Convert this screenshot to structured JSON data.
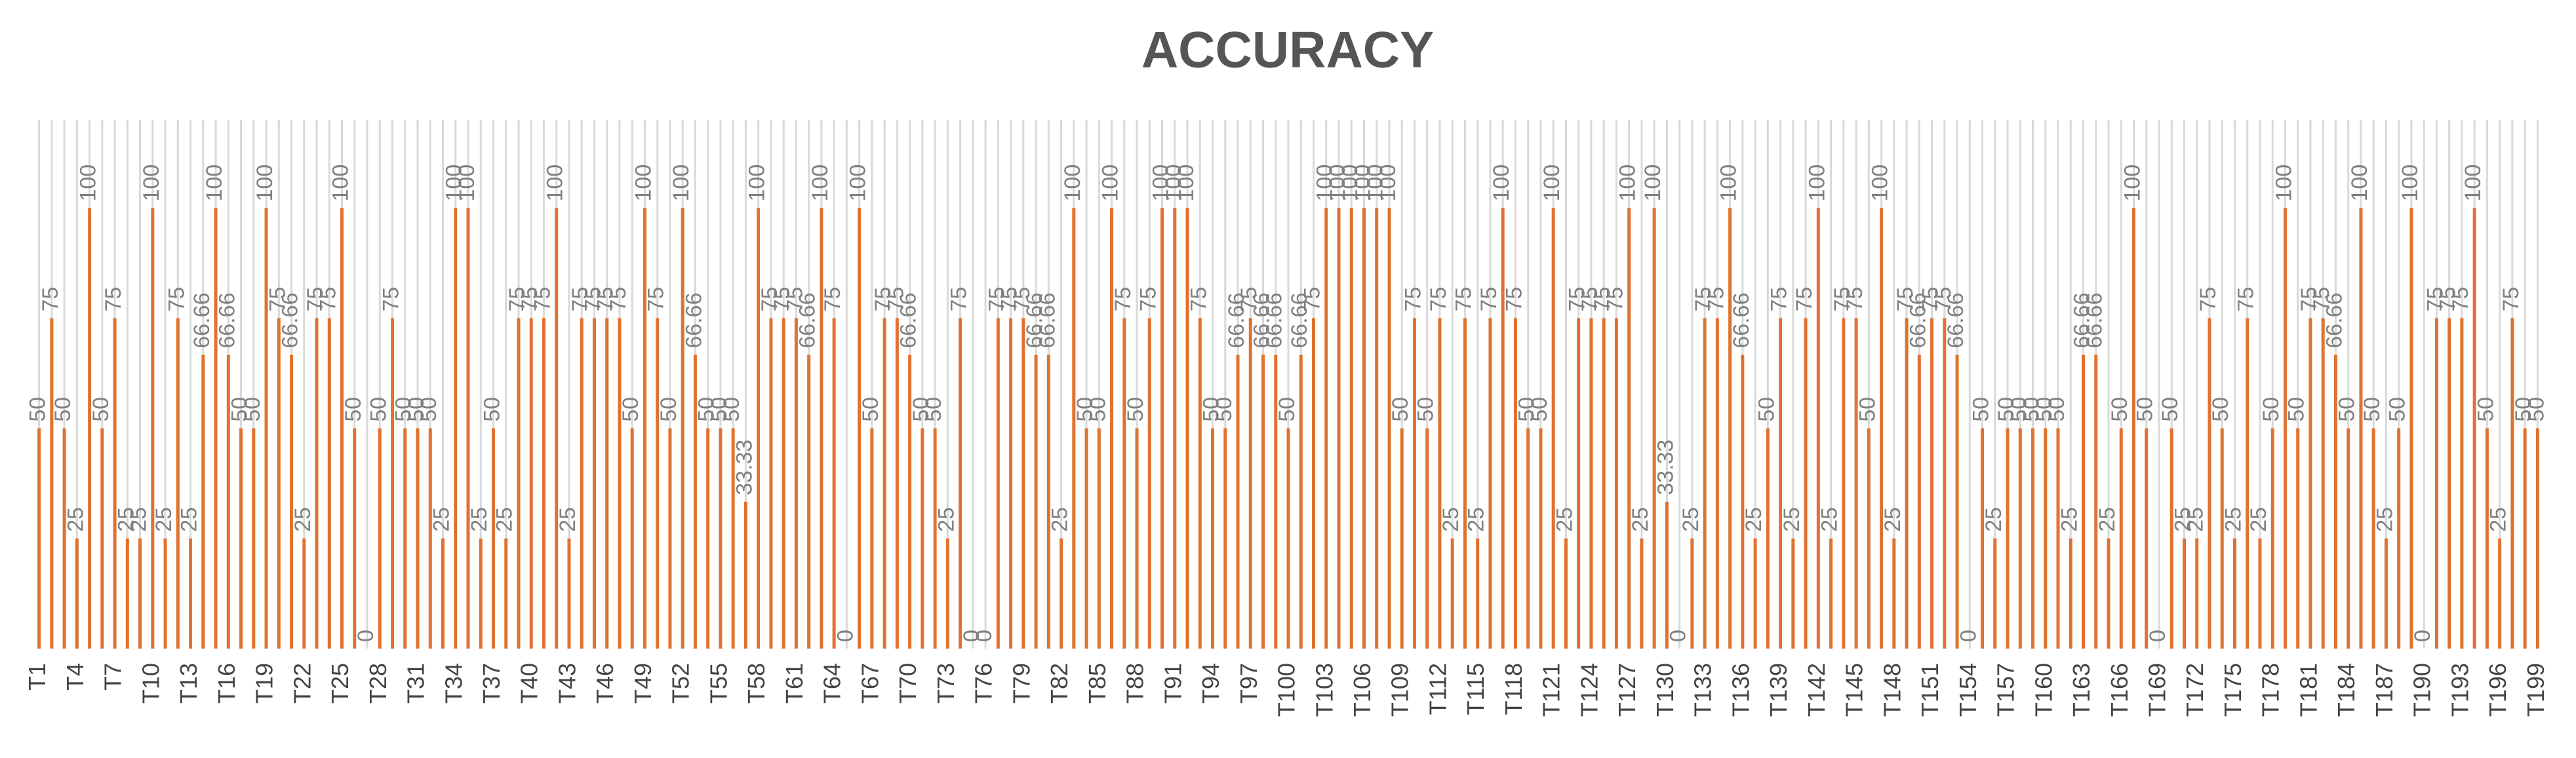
{
  "chart_data": {
    "type": "bar",
    "title": "ACCURACY",
    "categories": [
      "T1",
      null,
      null,
      "T4",
      null,
      null,
      "T7",
      null,
      null,
      "T10",
      null,
      null,
      "T13",
      null,
      null,
      "T16",
      null,
      null,
      "T19",
      null,
      null,
      "T22",
      null,
      null,
      "T25",
      null,
      null,
      "T28",
      null,
      null,
      "T31",
      null,
      null,
      "T34",
      null,
      null,
      "T37",
      null,
      null,
      "T40",
      null,
      null,
      "T43",
      null,
      null,
      "T46",
      null,
      null,
      "T49",
      null,
      null,
      "T52",
      null,
      null,
      "T55",
      null,
      null,
      "T58",
      null,
      null,
      "T61",
      null,
      null,
      "T64",
      null,
      null,
      "T67",
      null,
      null,
      "T70",
      null,
      null,
      "T73",
      null,
      null,
      "T76",
      null,
      null,
      "T79",
      null,
      null,
      "T82",
      null,
      null,
      "T85",
      null,
      null,
      "T88",
      null,
      null,
      "T91",
      null,
      null,
      "T94",
      null,
      null,
      "T97",
      null,
      null,
      "T100",
      null,
      null,
      "T103",
      null,
      null,
      "T106",
      null,
      null,
      "T109",
      null,
      null,
      "T112",
      null,
      null,
      "T115",
      null,
      null,
      "T118",
      null,
      null,
      "T121",
      null,
      null,
      "T124",
      null,
      null,
      "T127",
      null,
      null,
      "T130",
      null,
      null,
      "T133",
      null,
      null,
      "T136",
      null,
      null,
      "T139",
      null,
      null,
      "T142",
      null,
      null,
      "T145",
      null,
      null,
      "T148",
      null,
      null,
      "T151",
      null,
      null,
      "T154",
      null,
      null,
      "T157",
      null,
      null,
      "T160",
      null,
      null,
      "T163",
      null,
      null,
      "T166",
      null,
      null,
      "T169",
      null,
      null,
      "T172",
      null,
      null,
      "T175",
      null,
      null,
      "T178",
      null,
      null,
      "T181",
      null,
      null,
      "T184",
      null,
      null,
      "T187",
      null,
      null,
      "T190",
      null,
      null,
      "T193",
      null,
      null,
      "T196",
      null,
      null,
      "T199"
    ],
    "values": [
      50,
      75,
      50,
      25,
      100,
      50,
      75,
      25,
      25,
      100,
      25,
      75,
      25,
      66.66,
      100,
      66.66,
      50,
      50,
      100,
      75,
      66.66,
      25,
      75,
      75,
      100,
      50,
      0,
      50,
      75,
      50,
      50,
      50,
      25,
      100,
      100,
      25,
      50,
      25,
      75,
      75,
      75,
      100,
      25,
      75,
      75,
      75,
      75,
      50,
      100,
      75,
      50,
      100,
      66.66,
      50,
      50,
      50,
      33.33,
      100,
      75,
      75,
      75,
      66.66,
      100,
      75,
      0,
      100,
      50,
      75,
      75,
      66.66,
      50,
      50,
      25,
      75,
      0,
      0,
      75,
      75,
      75,
      66.66,
      66.66,
      25,
      100,
      50,
      50,
      100,
      75,
      50,
      75,
      100,
      100,
      100,
      75,
      50,
      50,
      66.66,
      75,
      66.66,
      66.66,
      50,
      66.66,
      75,
      100,
      100,
      100,
      100,
      100,
      100,
      50,
      75,
      50,
      75,
      25,
      75,
      25,
      75,
      100,
      75,
      50,
      50,
      100,
      25,
      75,
      75,
      75,
      75,
      100,
      25,
      100,
      33.33,
      0,
      25,
      75,
      75,
      100,
      66.66,
      25,
      50,
      75,
      25,
      75,
      100,
      25,
      75,
      75,
      50,
      100,
      25,
      75,
      66.66,
      75,
      75,
      66.66,
      0,
      50,
      25,
      50,
      50,
      50,
      50,
      50,
      25,
      66.66,
      66.66,
      25,
      50,
      100,
      50,
      0,
      50,
      25,
      25,
      75,
      50,
      25,
      75,
      25,
      50,
      100,
      50,
      75,
      75,
      66.66,
      50,
      100,
      50,
      25,
      50,
      100,
      0,
      75,
      75,
      75,
      100,
      50,
      25,
      75,
      50,
      50
    ],
    "color": "#e0722f",
    "ylim": [
      0,
      120
    ],
    "grid": true
  }
}
